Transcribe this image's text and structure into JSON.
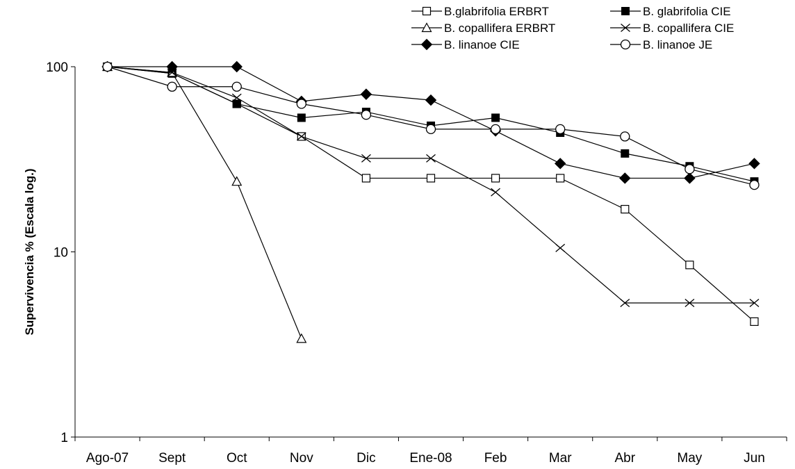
{
  "chart_data": {
    "type": "line",
    "title": "",
    "xlabel": "",
    "ylabel": "Supervivencia % (Escala log.)",
    "y_scale": "log",
    "ylim": [
      1,
      100
    ],
    "y_ticks": [
      "1",
      "10",
      "100"
    ],
    "categories": [
      "Ago-07",
      "Sept",
      "Oct",
      "Nov",
      "Dic",
      "Ene-08",
      "Feb",
      "Mar",
      "Abr",
      "May",
      "Jun"
    ],
    "legend_position": "top-right",
    "grid": false,
    "series": [
      {
        "name": "B.glabrifolia ERBRT",
        "marker": "open-square",
        "values": [
          100,
          92,
          63,
          42,
          25,
          25,
          25,
          25,
          17,
          8.5,
          4.2
        ]
      },
      {
        "name": "B. glabrifolia CIE",
        "marker": "filled-square",
        "values": [
          100,
          92,
          63,
          53,
          57,
          48,
          53,
          44,
          34,
          29,
          24
        ]
      },
      {
        "name": "B. copallifera ERBRT",
        "marker": "open-triangle",
        "values": [
          100,
          93,
          24,
          3.4,
          null,
          null,
          null,
          null,
          null,
          null,
          null
        ]
      },
      {
        "name": "B. copallifera CIE",
        "marker": "cross",
        "values": [
          100,
          93,
          68,
          42,
          32,
          32,
          21,
          10.5,
          5.3,
          5.3,
          5.3
        ]
      },
      {
        "name": "B. linanoe CIE",
        "marker": "filled-diamond",
        "values": [
          100,
          100,
          100,
          65,
          71,
          66,
          45,
          30,
          25,
          25,
          30
        ]
      },
      {
        "name": "B. linanoe JE",
        "marker": "open-circle",
        "values": [
          100,
          78,
          78,
          63,
          55,
          46,
          46,
          46,
          42,
          28,
          23
        ]
      }
    ]
  }
}
